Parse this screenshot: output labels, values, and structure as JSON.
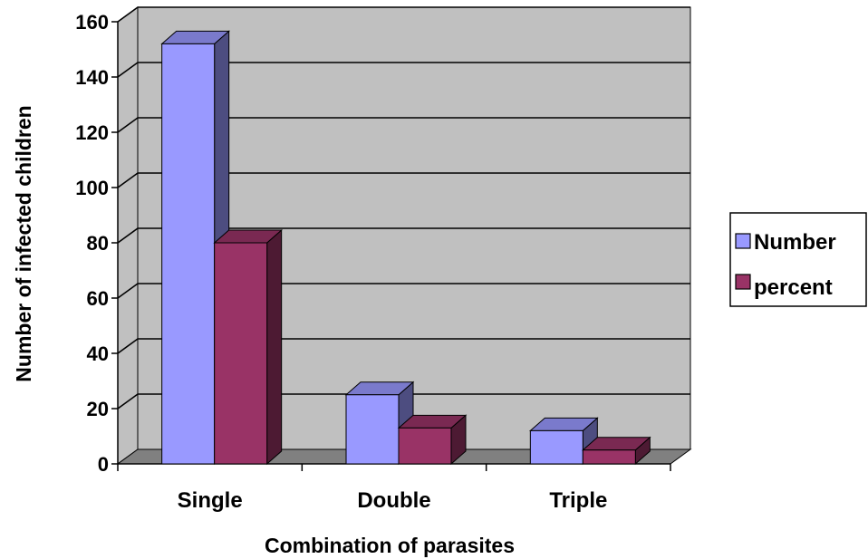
{
  "chart_data": {
    "type": "bar",
    "style": "3d-clustered-column",
    "categories": [
      "Single",
      "Double",
      "Triple"
    ],
    "series": [
      {
        "name": "Number",
        "values": [
          152,
          25,
          12
        ],
        "color": "#9999ff"
      },
      {
        "name": "percent",
        "values": [
          80,
          13,
          5
        ],
        "color": "#993366"
      }
    ],
    "title": "",
    "xlabel": "Combination of parasites",
    "ylabel": "Number of infected children",
    "ylim": [
      0,
      160
    ],
    "yticks": [
      "0",
      "20",
      "40",
      "60",
      "80",
      "100",
      "120",
      "140",
      "160"
    ],
    "grid": true,
    "legend_position": "right",
    "colors": {
      "wall": "#c0c0c0",
      "floor": "#808080",
      "gridline": "#000000"
    }
  }
}
